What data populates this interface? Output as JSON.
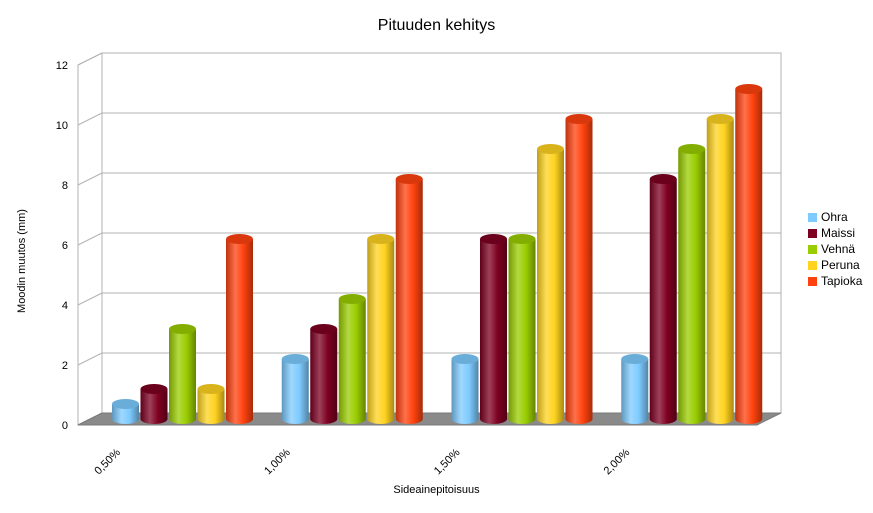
{
  "chart_data": {
    "type": "bar",
    "title": "Pituuden kehitys",
    "xlabel": "Sideainepitoisuus",
    "ylabel": "Moodin muutos (mm)",
    "categories": [
      "0,50%",
      "1,00%",
      "1,50%",
      "2,00%"
    ],
    "ylim": [
      0,
      12
    ],
    "yticks": [
      "0",
      "2",
      "4",
      "6",
      "8",
      "10",
      "12"
    ],
    "grid": true,
    "legend_position": "right",
    "series": [
      {
        "name": "Ohra",
        "color": "#7ecbff",
        "values": [
          0.5,
          2,
          2,
          2
        ]
      },
      {
        "name": "Maissi",
        "color": "#7d0021",
        "values": [
          1,
          3,
          6,
          8
        ]
      },
      {
        "name": "Vehnä",
        "color": "#9acd00",
        "values": [
          3,
          4,
          6,
          9
        ]
      },
      {
        "name": "Peruna",
        "color": "#ffd320",
        "values": [
          1,
          6,
          9,
          10
        ]
      },
      {
        "name": "Tapioka",
        "color": "#ff420e",
        "values": [
          6,
          8,
          10,
          11
        ]
      }
    ]
  }
}
